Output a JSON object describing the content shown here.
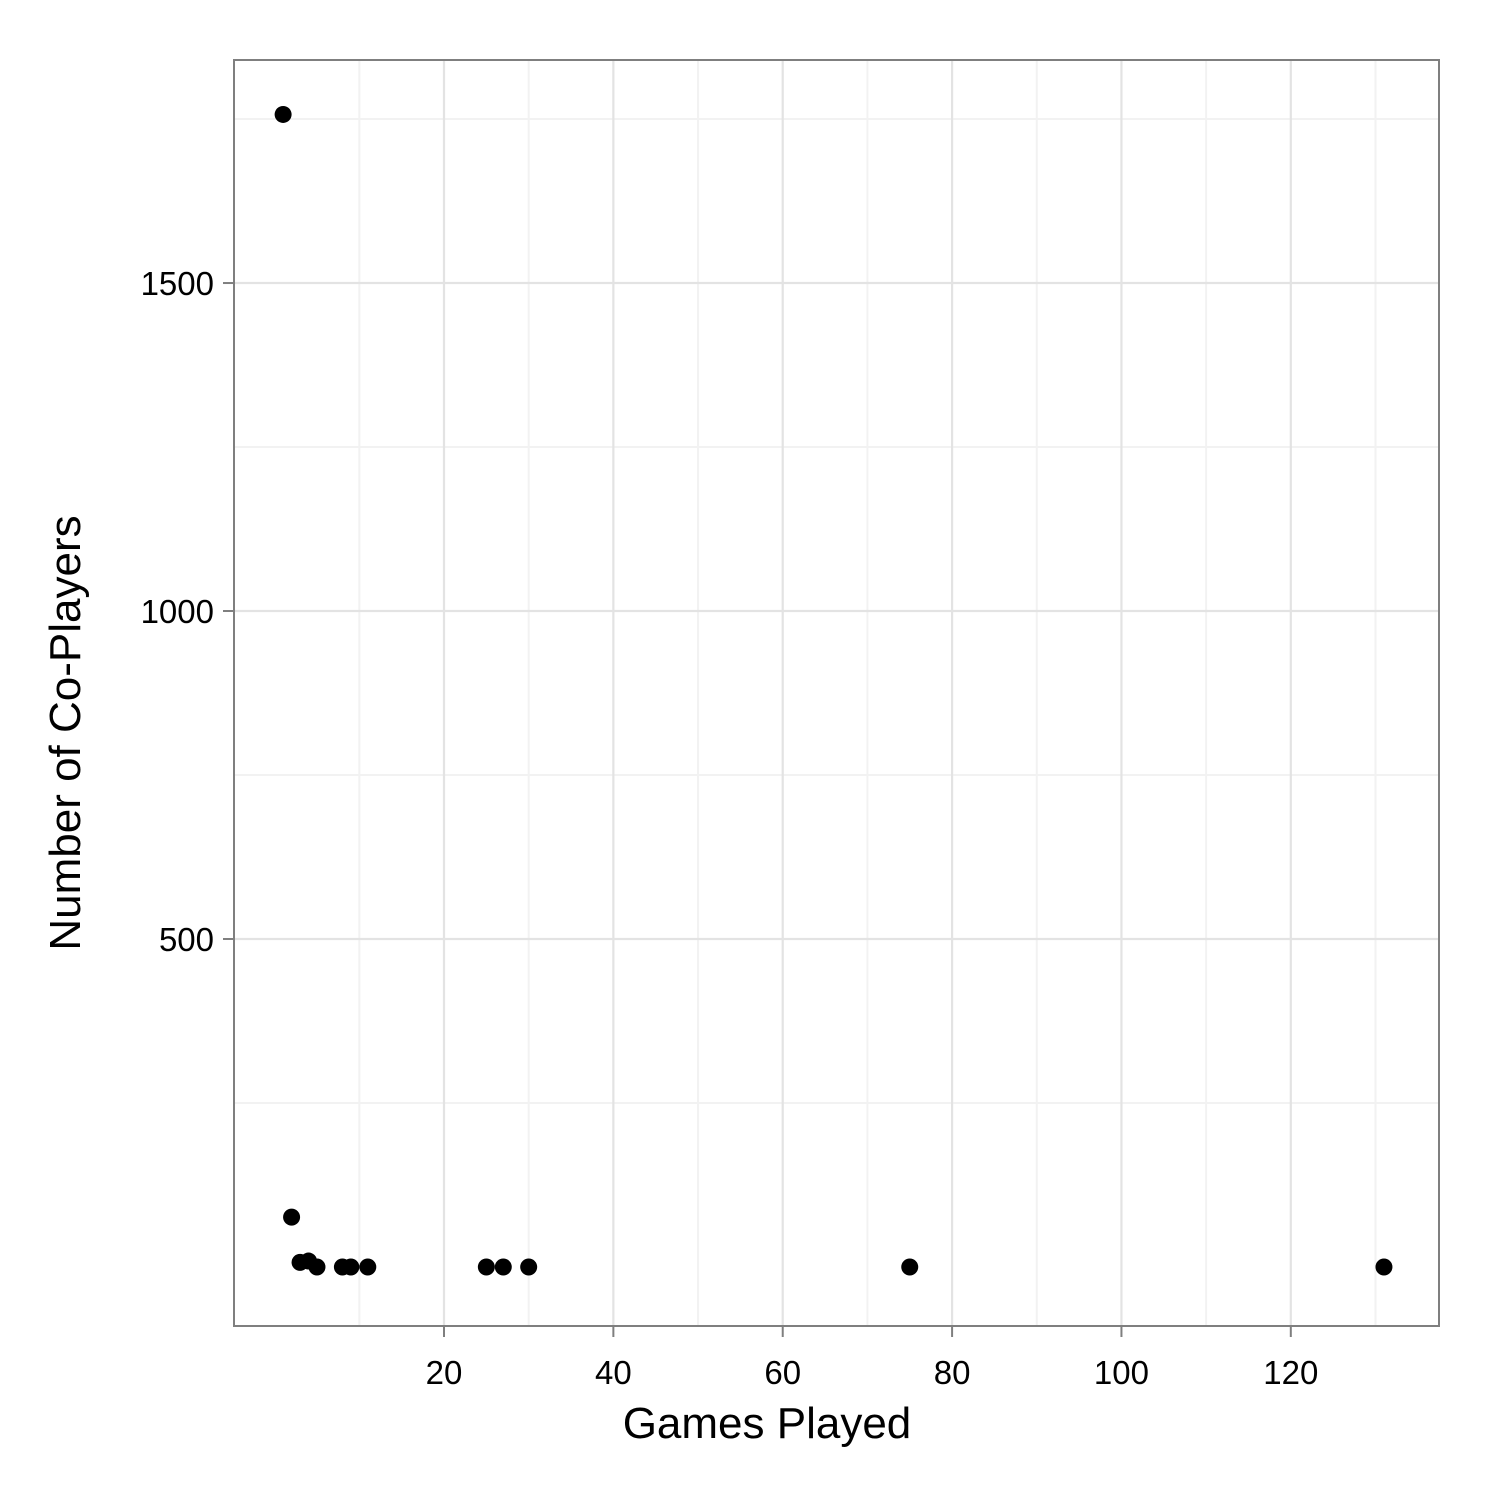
{
  "chart_data": {
    "type": "scatter",
    "title": "",
    "xlabel": "Games Played",
    "ylabel": "Number of Co-Players",
    "xlim": [
      -4.8,
      137.5
    ],
    "ylim": [
      -90,
      1840
    ],
    "xticks": [
      20,
      40,
      60,
      80,
      100,
      120
    ],
    "yticks": [
      500,
      1000,
      1500
    ],
    "x_tick_labels": [
      "20",
      "40",
      "60",
      "80",
      "100",
      "120"
    ],
    "y_tick_labels": [
      "500",
      "1000",
      "1500"
    ],
    "grid": true,
    "legend": "none",
    "point_color": "#000000",
    "points": [
      {
        "x": 1,
        "y": 1757
      },
      {
        "x": 2,
        "y": 76
      },
      {
        "x": 3,
        "y": 7
      },
      {
        "x": 4,
        "y": 9
      },
      {
        "x": 5,
        "y": 0
      },
      {
        "x": 8,
        "y": 0
      },
      {
        "x": 9,
        "y": 0
      },
      {
        "x": 11,
        "y": 0
      },
      {
        "x": 25,
        "y": 0
      },
      {
        "x": 27,
        "y": 0
      },
      {
        "x": 30,
        "y": 0
      },
      {
        "x": 75,
        "y": 0
      },
      {
        "x": 131,
        "y": 0
      }
    ]
  }
}
